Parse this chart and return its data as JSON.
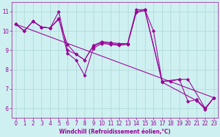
{
  "bg_color": "#cff0f0",
  "grid_color": "#aad4d4",
  "line_color": "#990099",
  "markersize": 2.5,
  "linewidth": 0.8,
  "xlabel": "Windchill (Refroidissement éolien,°C)",
  "ylim": [
    5.5,
    11.5
  ],
  "xlim": [
    -0.5,
    23.5
  ],
  "yticks": [
    6,
    7,
    8,
    9,
    10,
    11
  ],
  "xticks": [
    0,
    1,
    2,
    3,
    4,
    5,
    6,
    7,
    8,
    9,
    10,
    11,
    12,
    13,
    14,
    15,
    16,
    17,
    18,
    19,
    20,
    21,
    22,
    23
  ],
  "fontsize": 5.5,
  "line1_x": [
    0,
    1,
    2,
    3,
    4,
    5,
    6,
    7,
    8,
    9,
    10,
    11,
    12,
    13,
    14,
    15,
    16,
    17,
    19,
    20,
    22,
    23
  ],
  "line1_y": [
    10.35,
    10.0,
    10.5,
    10.2,
    10.15,
    10.6,
    9.3,
    8.8,
    8.5,
    9.25,
    9.45,
    9.4,
    9.35,
    9.35,
    11.1,
    11.1,
    10.0,
    7.4,
    7.5,
    7.5,
    6.0,
    6.55
  ],
  "line2_x": [
    0,
    1,
    2,
    3,
    4,
    5,
    6,
    7,
    8,
    9,
    10,
    11,
    12,
    13,
    14,
    15,
    17,
    18,
    19,
    20,
    21,
    22,
    23
  ],
  "line2_y": [
    10.35,
    10.0,
    10.5,
    10.2,
    10.15,
    11.0,
    9.0,
    8.8,
    8.5,
    9.2,
    9.4,
    9.35,
    9.3,
    9.35,
    11.0,
    11.1,
    7.4,
    7.4,
    7.5,
    6.35,
    6.45,
    6.0,
    6.55
  ],
  "line3_x": [
    0,
    1,
    2,
    3,
    4,
    5,
    6,
    7,
    8,
    9,
    10,
    11,
    12,
    13,
    14,
    15,
    17,
    21,
    22,
    23
  ],
  "line3_y": [
    10.35,
    10.0,
    10.5,
    10.2,
    10.15,
    10.65,
    8.85,
    8.5,
    7.7,
    9.1,
    9.35,
    9.3,
    9.25,
    9.3,
    10.95,
    11.05,
    7.35,
    6.4,
    5.95,
    6.55
  ],
  "line4_x": [
    0,
    23
  ],
  "line4_y": [
    10.35,
    6.55
  ]
}
